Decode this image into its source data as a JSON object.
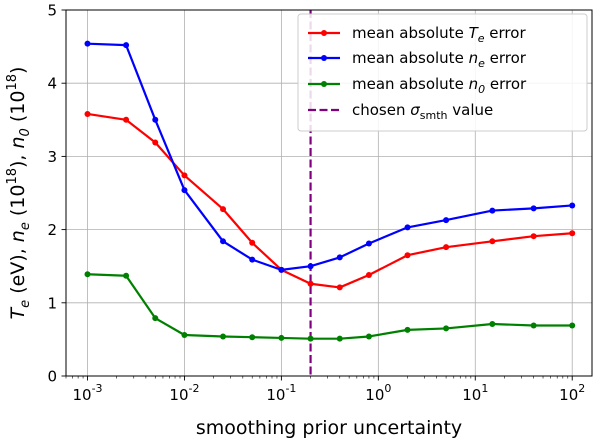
{
  "chart_data": {
    "type": "line",
    "xscale": "log",
    "x": [
      0.001,
      0.0025,
      0.005,
      0.01,
      0.025,
      0.05,
      0.1,
      0.2,
      0.4,
      0.8,
      2,
      5,
      15,
      40,
      100
    ],
    "series": [
      {
        "name_parts": [
          "mean absolute ",
          "T",
          "e",
          " error"
        ],
        "color": "#ff0000",
        "values": [
          3.58,
          3.5,
          3.19,
          2.74,
          2.28,
          1.82,
          1.45,
          1.26,
          1.21,
          1.38,
          1.65,
          1.76,
          1.84,
          1.91,
          1.95
        ]
      },
      {
        "name_parts": [
          "mean absolute ",
          "n",
          "e",
          " error"
        ],
        "color": "#0000ff",
        "values": [
          4.54,
          4.52,
          3.5,
          2.54,
          1.84,
          1.59,
          1.45,
          1.5,
          1.62,
          1.81,
          2.03,
          2.13,
          2.26,
          2.29,
          2.33
        ]
      },
      {
        "name_parts": [
          "mean absolute ",
          "n",
          "0",
          " error"
        ],
        "color": "#008000",
        "values": [
          1.39,
          1.37,
          0.79,
          0.56,
          0.54,
          0.53,
          0.52,
          0.51,
          0.51,
          0.54,
          0.63,
          0.65,
          0.71,
          0.69,
          0.69
        ]
      }
    ],
    "vline": {
      "x": 0.2,
      "color": "#800080",
      "label_parts": [
        "chosen ",
        "σ",
        "smth",
        " value"
      ]
    },
    "xlabel": "smoothing prior uncertainty",
    "ylabel_parts": [
      "T",
      "e",
      " (eV),  ",
      "n",
      "e",
      " (10",
      "18",
      "),  ",
      "n",
      "0",
      " (10",
      "18",
      ")"
    ],
    "xlim": [
      0.0006,
      160
    ],
    "ylim": [
      0,
      5
    ],
    "yticks": [
      0,
      1,
      2,
      3,
      4,
      5
    ],
    "xtick_exponents": [
      "-3",
      "-2",
      "-1",
      "0",
      "1",
      "2"
    ],
    "xtick_base": "10",
    "grid": true,
    "legend_position": "upper right"
  }
}
